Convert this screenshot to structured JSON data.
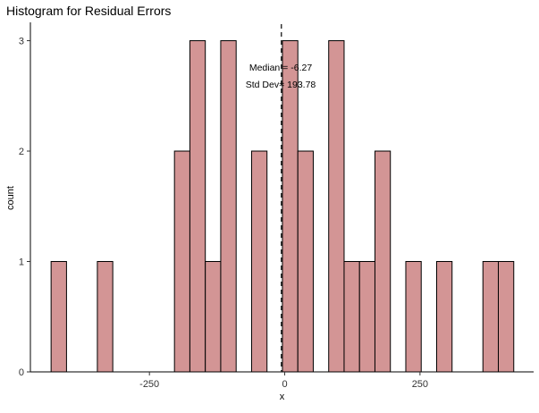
{
  "chart_data": {
    "type": "bar",
    "title": "Histogram for Residual Errors",
    "xlabel": "x",
    "ylabel": "count",
    "xlim": [
      -470,
      460
    ],
    "ylim": [
      0,
      3.15
    ],
    "x_ticks": [
      -250,
      0,
      250
    ],
    "y_ticks": [
      0,
      1,
      2,
      3
    ],
    "bin_width": 28.5,
    "bins": [
      {
        "center": -417.5,
        "count": 1
      },
      {
        "center": -389.0,
        "count": 0
      },
      {
        "center": -360.5,
        "count": 0
      },
      {
        "center": -332.0,
        "count": 1
      },
      {
        "center": -303.5,
        "count": 0
      },
      {
        "center": -275.0,
        "count": 0
      },
      {
        "center": -246.5,
        "count": 0
      },
      {
        "center": -218.0,
        "count": 0
      },
      {
        "center": -189.5,
        "count": 2
      },
      {
        "center": -161.0,
        "count": 3
      },
      {
        "center": -132.5,
        "count": 1
      },
      {
        "center": -104.0,
        "count": 3
      },
      {
        "center": -75.5,
        "count": 0
      },
      {
        "center": -47.0,
        "count": 2
      },
      {
        "center": -18.5,
        "count": 0
      },
      {
        "center": 10.0,
        "count": 3
      },
      {
        "center": 38.5,
        "count": 2
      },
      {
        "center": 67.0,
        "count": 0
      },
      {
        "center": 95.5,
        "count": 3
      },
      {
        "center": 124.0,
        "count": 1
      },
      {
        "center": 152.5,
        "count": 1
      },
      {
        "center": 181.0,
        "count": 2
      },
      {
        "center": 209.5,
        "count": 0
      },
      {
        "center": 238.0,
        "count": 1
      },
      {
        "center": 266.5,
        "count": 0
      },
      {
        "center": 295.0,
        "count": 1
      },
      {
        "center": 323.5,
        "count": 0
      },
      {
        "center": 352.0,
        "count": 0
      },
      {
        "center": 380.5,
        "count": 1
      },
      {
        "center": 409.0,
        "count": 1
      }
    ],
    "median_line": -6.27,
    "annotations": [
      "Median = -6.27",
      "Std Dev= 193.78"
    ],
    "colors": {
      "bar_fill": "#d39595",
      "bar_stroke": "#000000",
      "median_line": "#333333"
    },
    "grid": false
  }
}
